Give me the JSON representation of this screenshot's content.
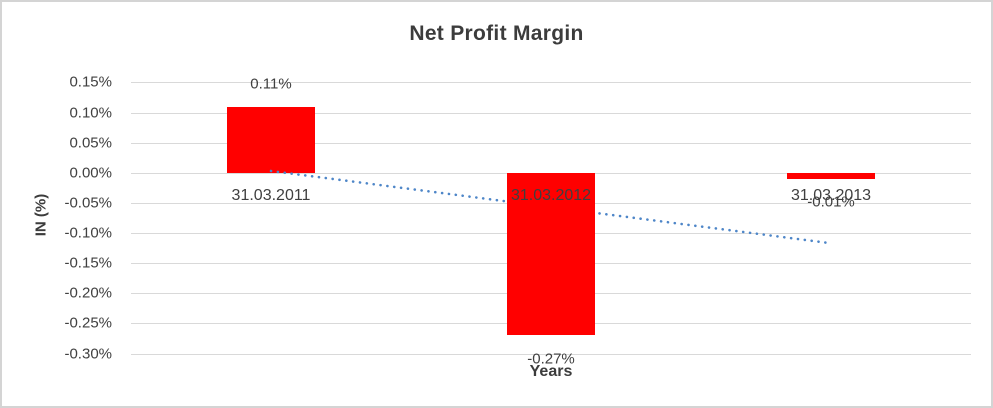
{
  "chart_data": {
    "type": "bar",
    "title": "Net Profit Margin",
    "xlabel": "Years",
    "ylabel": "IN (%)",
    "categories": [
      "31.03.2011",
      "31.03.2012",
      "31.03.2013"
    ],
    "values": [
      0.11,
      -0.27,
      -0.01
    ],
    "data_labels": [
      "0.11%",
      "-0.27%",
      "-0.01%"
    ],
    "unit": "percent",
    "ylim": [
      -0.3,
      0.15
    ],
    "ytick_step": 0.05,
    "ytick_labels": [
      "0.15%",
      "0.10%",
      "0.05%",
      "0.00%",
      "-0.05%",
      "-0.10%",
      "-0.15%",
      "-0.20%",
      "-0.25%",
      "-0.30%"
    ],
    "grid": true,
    "legend": "none",
    "trendline": {
      "type": "linear",
      "style": "dotted",
      "start_value": 0.003,
      "end_value": -0.117
    }
  },
  "colors": {
    "bar": "#ff0000",
    "trendline": "#4e86c8",
    "gridline": "#d9d9d9",
    "text": "#404040",
    "border": "#d4d4d4"
  }
}
